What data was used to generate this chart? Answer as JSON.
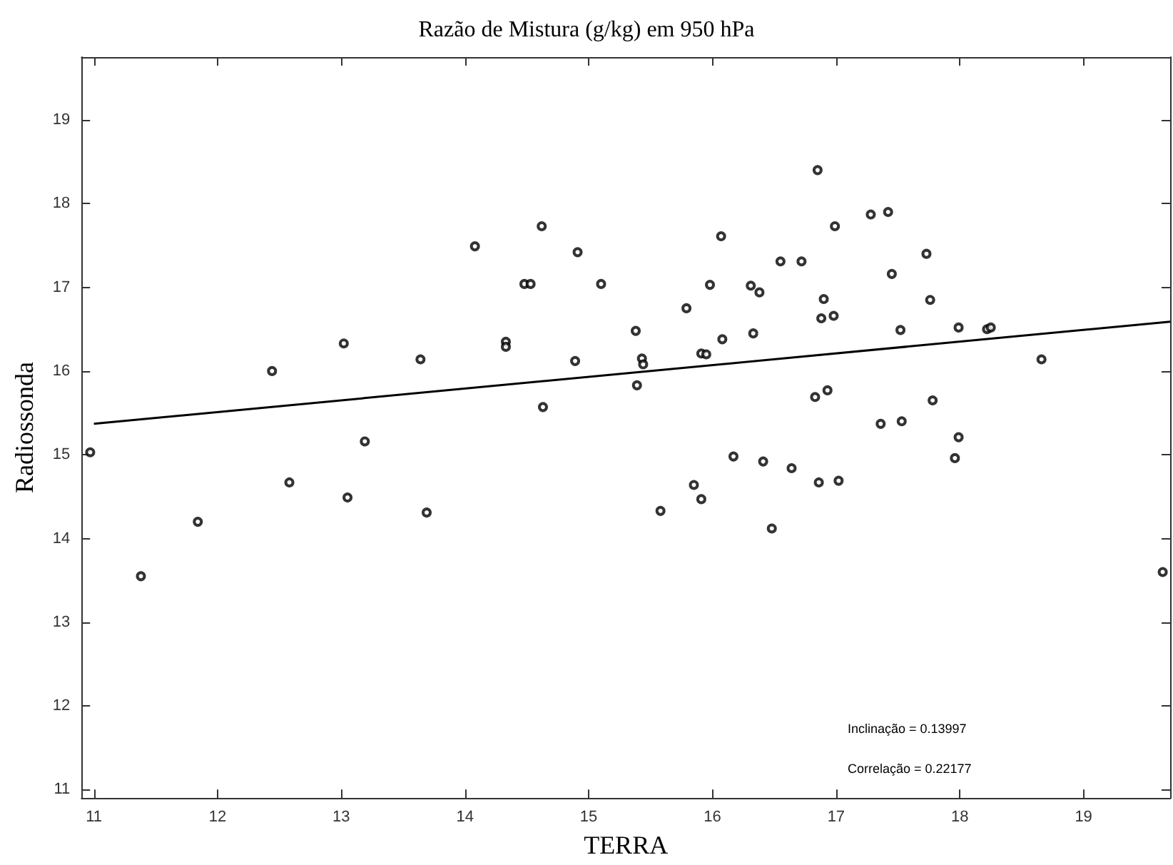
{
  "chart_data": {
    "type": "scatter",
    "title": "Razão de Mistura (g/kg) em 950 hPa",
    "xlabel": "TERRA",
    "ylabel": "Radiossonda",
    "annotations": [
      "Inclinação = 0.13997",
      "Correlação = 0.22177"
    ],
    "xlim": [
      10.9,
      19.7
    ],
    "xticks": [
      11,
      12,
      13,
      14,
      15,
      16,
      17,
      18,
      19
    ],
    "ylim": [
      10.9,
      19.75
    ],
    "yticks": [
      11,
      12,
      13,
      14,
      15,
      16,
      17,
      18,
      19
    ],
    "grid": false,
    "marker": "circle",
    "series": [
      {
        "color": "#000000",
        "x": [
          10.97,
          11.38,
          11.84,
          12.44,
          12.58,
          13.02,
          13.05,
          13.19,
          13.64,
          13.69,
          14.08,
          14.33,
          14.33,
          14.48,
          14.53,
          14.62,
          14.63,
          14.89,
          14.91,
          15.1,
          15.38,
          15.43,
          15.44,
          15.39,
          15.79,
          15.91,
          15.95,
          15.98,
          16.07,
          16.08,
          16.31,
          16.38,
          16.33,
          16.55,
          16.72,
          16.85,
          16.9,
          16.88,
          16.98,
          16.99,
          17.28,
          17.42,
          17.45,
          17.52,
          17.73,
          17.76,
          17.99,
          18.22,
          18.25,
          18.66,
          16.83,
          16.93,
          17.78,
          17.36,
          17.53,
          17.99,
          17.96,
          16.17,
          16.41,
          15.58,
          15.85,
          15.91,
          16.64,
          16.48,
          16.86,
          17.02,
          19.64
        ],
        "values": [
          15.03,
          13.55,
          14.2,
          16.0,
          14.67,
          16.33,
          14.49,
          15.16,
          16.14,
          14.31,
          17.49,
          16.35,
          16.29,
          17.04,
          17.04,
          17.73,
          15.57,
          16.12,
          17.42,
          17.04,
          16.48,
          16.15,
          16.08,
          15.83,
          16.75,
          16.21,
          16.2,
          17.03,
          17.61,
          16.38,
          17.02,
          16.94,
          16.45,
          17.31,
          17.31,
          18.4,
          16.86,
          16.63,
          16.66,
          17.73,
          17.87,
          17.9,
          17.16,
          16.49,
          17.4,
          16.85,
          16.52,
          16.5,
          16.52,
          16.14,
          15.69,
          15.77,
          15.65,
          15.37,
          15.4,
          15.21,
          14.96,
          14.98,
          14.92,
          14.33,
          14.64,
          14.47,
          14.84,
          14.12,
          14.67,
          14.69,
          13.6
        ]
      },
      {
        "type": "line",
        "color": "#000000",
        "line_style": "solid",
        "marker": "none",
        "x": [
          11,
          19.7
        ],
        "values": [
          15.37,
          16.59
        ]
      }
    ]
  }
}
